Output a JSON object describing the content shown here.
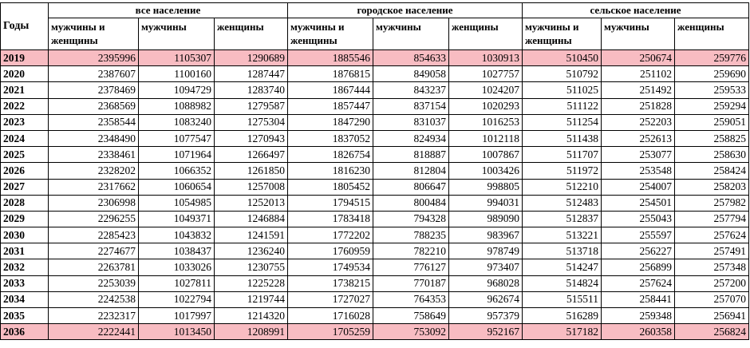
{
  "header": {
    "years_label": "Годы",
    "groups": [
      "все население",
      "городское население",
      "сельское население"
    ],
    "subheaders": [
      "мужчины и женщины",
      "мужчины",
      "женщины"
    ]
  },
  "rows": [
    {
      "year": "2019",
      "values": [
        "2395996",
        "1105307",
        "1290689",
        "1885546",
        "854633",
        "1030913",
        "510450",
        "250674",
        "259776"
      ],
      "highlight": true
    },
    {
      "year": "2020",
      "values": [
        "2387607",
        "1100160",
        "1287447",
        "1876815",
        "849058",
        "1027757",
        "510792",
        "251102",
        "259690"
      ],
      "highlight": false
    },
    {
      "year": "2021",
      "values": [
        "2378469",
        "1094729",
        "1283740",
        "1867444",
        "843237",
        "1024207",
        "511025",
        "251492",
        "259533"
      ],
      "highlight": false
    },
    {
      "year": "2022",
      "values": [
        "2368569",
        "1088982",
        "1279587",
        "1857447",
        "837154",
        "1020293",
        "511122",
        "251828",
        "259294"
      ],
      "highlight": false
    },
    {
      "year": "2023",
      "values": [
        "2358544",
        "1083240",
        "1275304",
        "1847290",
        "831037",
        "1016253",
        "511254",
        "252203",
        "259051"
      ],
      "highlight": false
    },
    {
      "year": "2024",
      "values": [
        "2348490",
        "1077547",
        "1270943",
        "1837052",
        "824934",
        "1012118",
        "511438",
        "252613",
        "258825"
      ],
      "highlight": false
    },
    {
      "year": "2025",
      "values": [
        "2338461",
        "1071964",
        "1266497",
        "1826754",
        "818887",
        "1007867",
        "511707",
        "253077",
        "258630"
      ],
      "highlight": false
    },
    {
      "year": "2026",
      "values": [
        "2328202",
        "1066352",
        "1261850",
        "1816230",
        "812804",
        "1003426",
        "511972",
        "253548",
        "258424"
      ],
      "highlight": false
    },
    {
      "year": "2027",
      "values": [
        "2317662",
        "1060654",
        "1257008",
        "1805452",
        "806647",
        "998805",
        "512210",
        "254007",
        "258203"
      ],
      "highlight": false
    },
    {
      "year": "2028",
      "values": [
        "2306998",
        "1054985",
        "1252013",
        "1794515",
        "800484",
        "994031",
        "512483",
        "254501",
        "257982"
      ],
      "highlight": false
    },
    {
      "year": "2029",
      "values": [
        "2296255",
        "1049371",
        "1246884",
        "1783418",
        "794328",
        "989090",
        "512837",
        "255043",
        "257794"
      ],
      "highlight": false
    },
    {
      "year": "2030",
      "values": [
        "2285423",
        "1043832",
        "1241591",
        "1772202",
        "788235",
        "983967",
        "513221",
        "255597",
        "257624"
      ],
      "highlight": false
    },
    {
      "year": "2031",
      "values": [
        "2274677",
        "1038437",
        "1236240",
        "1760959",
        "782210",
        "978749",
        "513718",
        "256227",
        "257491"
      ],
      "highlight": false
    },
    {
      "year": "2032",
      "values": [
        "2263781",
        "1033026",
        "1230755",
        "1749534",
        "776127",
        "973407",
        "514247",
        "256899",
        "257348"
      ],
      "highlight": false
    },
    {
      "year": "2033",
      "values": [
        "2253039",
        "1027811",
        "1225228",
        "1738215",
        "770187",
        "968028",
        "514824",
        "257624",
        "257200"
      ],
      "highlight": false
    },
    {
      "year": "2034",
      "values": [
        "2242538",
        "1022794",
        "1219744",
        "1727027",
        "764353",
        "962674",
        "515511",
        "258441",
        "257070"
      ],
      "highlight": false
    },
    {
      "year": "2035",
      "values": [
        "2232317",
        "1017997",
        "1214320",
        "1716028",
        "758649",
        "957379",
        "516289",
        "259348",
        "256941"
      ],
      "highlight": false
    },
    {
      "year": "2036",
      "values": [
        "2222441",
        "1013450",
        "1208991",
        "1705259",
        "753092",
        "952167",
        "517182",
        "260358",
        "256824"
      ],
      "highlight": true
    }
  ]
}
